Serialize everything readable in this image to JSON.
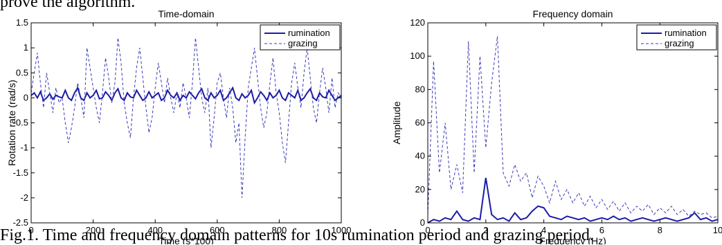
{
  "page": {
    "top_text": "prove the algorithm.",
    "caption": "Fig.1. Time and frequency domain patterns for 10s rumination period and grazing period."
  },
  "colors": {
    "rumination": "#1a1aa6",
    "grazing": "#3a3ab8"
  },
  "chart_data": [
    {
      "type": "line",
      "title": "Time-domain",
      "xlabel": "Time (s*100)",
      "ylabel": "Rotation rate (rad/s)",
      "xlim": [
        0,
        1000
      ],
      "ylim": [
        -2.5,
        1.5
      ],
      "xticks": [
        0,
        200,
        400,
        600,
        800,
        1000
      ],
      "yticks": [
        -2.5,
        -2,
        -1.5,
        -1,
        -0.5,
        0,
        0.5,
        1,
        1.5
      ],
      "xtick_labels": [
        "0",
        "200",
        "400",
        "600",
        "800",
        "1000"
      ],
      "ytick_labels": [
        "-2.5",
        "-2",
        "-1.5",
        "-1",
        "-0.5",
        "0",
        "0.5",
        "1",
        "1.5"
      ],
      "grid": false,
      "legend_position": "top-right",
      "series": [
        {
          "name": "rumination",
          "style": "solid",
          "x": [
            0,
            10,
            20,
            30,
            40,
            50,
            60,
            70,
            80,
            90,
            100,
            110,
            120,
            130,
            140,
            150,
            160,
            170,
            180,
            190,
            200,
            210,
            220,
            230,
            240,
            250,
            260,
            270,
            280,
            290,
            300,
            310,
            320,
            330,
            340,
            350,
            360,
            370,
            380,
            390,
            400,
            410,
            420,
            430,
            440,
            450,
            460,
            470,
            480,
            490,
            500,
            510,
            520,
            530,
            540,
            550,
            560,
            570,
            580,
            590,
            600,
            610,
            620,
            630,
            640,
            650,
            660,
            670,
            680,
            690,
            700,
            710,
            720,
            730,
            740,
            750,
            760,
            770,
            780,
            790,
            800,
            810,
            820,
            830,
            840,
            850,
            860,
            870,
            880,
            890,
            900,
            910,
            920,
            930,
            940,
            950,
            960,
            970,
            980,
            990,
            1000
          ],
          "y": [
            0.05,
            0.1,
            0.0,
            0.12,
            -0.05,
            0.0,
            0.08,
            -0.03,
            0.05,
            0.02,
            0.0,
            0.15,
            0.0,
            -0.05,
            0.1,
            0.2,
            0.0,
            -0.05,
            0.1,
            0.0,
            0.05,
            0.15,
            -0.02,
            0.0,
            0.12,
            0.05,
            -0.05,
            0.1,
            0.18,
            0.0,
            -0.05,
            0.1,
            0.02,
            0.0,
            0.15,
            0.05,
            -0.05,
            0.0,
            0.12,
            0.0,
            0.05,
            0.1,
            -0.05,
            0.0,
            0.15,
            0.05,
            0.0,
            0.1,
            -0.05,
            0.05,
            0.0,
            0.12,
            0.05,
            -0.02,
            0.1,
            0.18,
            0.0,
            -0.05,
            0.1,
            0.0,
            0.05,
            0.15,
            -0.05,
            0.0,
            0.1,
            0.2,
            0.0,
            -0.05,
            0.08,
            0.0,
            0.05,
            0.15,
            -0.1,
            0.0,
            0.12,
            0.05,
            -0.05,
            0.1,
            0.0,
            0.05,
            0.15,
            0.0,
            -0.05,
            0.1,
            0.05,
            0.0,
            0.15,
            -0.05,
            0.0,
            0.1,
            0.18,
            0.0,
            -0.05,
            0.1,
            0.02,
            0.0,
            0.15,
            0.05,
            -0.05,
            0.0,
            0.05
          ]
        },
        {
          "name": "grazing",
          "style": "dashed",
          "x": [
            0,
            10,
            20,
            30,
            40,
            50,
            60,
            70,
            80,
            90,
            100,
            110,
            120,
            130,
            140,
            150,
            160,
            170,
            180,
            190,
            200,
            210,
            220,
            230,
            240,
            250,
            260,
            270,
            280,
            290,
            300,
            310,
            320,
            330,
            340,
            350,
            360,
            370,
            380,
            390,
            400,
            410,
            420,
            430,
            440,
            450,
            460,
            470,
            480,
            490,
            500,
            510,
            520,
            530,
            540,
            550,
            560,
            570,
            580,
            590,
            600,
            610,
            620,
            630,
            640,
            650,
            660,
            670,
            680,
            690,
            700,
            710,
            720,
            730,
            740,
            750,
            760,
            770,
            780,
            790,
            800,
            810,
            820,
            830,
            840,
            850,
            860,
            870,
            880,
            890,
            900,
            910,
            920,
            930,
            940,
            950,
            960,
            970,
            980,
            990,
            1000
          ],
          "y": [
            0.1,
            0.5,
            0.9,
            0.3,
            -0.2,
            0.5,
            0.1,
            -0.3,
            0.2,
            -0.1,
            0.0,
            -0.5,
            -0.9,
            -0.6,
            -0.2,
            0.3,
            0.0,
            -0.4,
            1.0,
            0.6,
            0.2,
            -0.2,
            -0.5,
            0.1,
            0.8,
            0.4,
            -0.1,
            0.3,
            1.2,
            0.7,
            -0.1,
            -0.5,
            -0.8,
            0.0,
            0.6,
            1.0,
            0.4,
            -0.2,
            -0.7,
            -0.4,
            0.2,
            0.7,
            0.3,
            -0.1,
            0.4,
            0.0,
            -0.3,
            0.1,
            -0.2,
            0.3,
            0.0,
            -0.4,
            0.3,
            1.2,
            0.6,
            0.0,
            -0.3,
            0.2,
            -1.0,
            -0.4,
            0.3,
            0.5,
            0.0,
            -0.4,
            0.2,
            -0.2,
            -0.9,
            -0.5,
            -2.0,
            -0.8,
            0.2,
            0.6,
            1.0,
            0.4,
            -0.2,
            -0.6,
            -0.3,
            0.3,
            0.8,
            0.1,
            -0.3,
            -0.9,
            -1.3,
            -0.5,
            0.3,
            0.7,
            0.2,
            -0.2,
            0.5,
            1.0,
            0.4,
            -0.2,
            -0.5,
            0.1,
            0.6,
            0.2,
            -0.3,
            0.4,
            -0.2,
            0.1,
            0.0
          ]
        }
      ]
    },
    {
      "type": "line",
      "title": "Frequency domain",
      "xlabel": "Frequency (Hz)",
      "ylabel": "Amplitude",
      "xlim": [
        0,
        10
      ],
      "ylim": [
        0,
        120
      ],
      "xticks": [
        0,
        2,
        4,
        6,
        8,
        10
      ],
      "yticks": [
        0,
        20,
        40,
        60,
        80,
        100,
        120
      ],
      "xtick_labels": [
        "0",
        "2",
        "4",
        "6",
        "8",
        "10"
      ],
      "ytick_labels": [
        "0",
        "20",
        "40",
        "60",
        "80",
        "100",
        "120"
      ],
      "grid": false,
      "legend_position": "top-right",
      "series": [
        {
          "name": "rumination",
          "style": "solid",
          "x": [
            0,
            0.2,
            0.4,
            0.6,
            0.8,
            1.0,
            1.2,
            1.4,
            1.6,
            1.8,
            2.0,
            2.2,
            2.4,
            2.6,
            2.8,
            3.0,
            3.2,
            3.4,
            3.6,
            3.8,
            4.0,
            4.2,
            4.4,
            4.6,
            4.8,
            5.0,
            5.2,
            5.4,
            5.6,
            5.8,
            6.0,
            6.2,
            6.4,
            6.6,
            6.8,
            7.0,
            7.2,
            7.4,
            7.6,
            7.8,
            8.0,
            8.2,
            8.4,
            8.6,
            8.8,
            9.0,
            9.2,
            9.4,
            9.6,
            9.8,
            10.0
          ],
          "y": [
            0,
            2,
            1,
            3,
            2,
            7,
            2,
            1,
            3,
            2,
            27,
            5,
            2,
            3,
            1,
            6,
            2,
            3,
            7,
            10,
            9,
            4,
            3,
            2,
            4,
            3,
            2,
            3,
            1,
            2,
            3,
            2,
            4,
            2,
            3,
            1,
            2,
            3,
            2,
            1,
            2,
            3,
            2,
            1,
            2,
            3,
            6,
            2,
            3,
            1,
            2
          ]
        },
        {
          "name": "grazing",
          "style": "dashed",
          "x": [
            0,
            0.2,
            0.4,
            0.6,
            0.8,
            1.0,
            1.2,
            1.4,
            1.6,
            1.8,
            2.0,
            2.2,
            2.4,
            2.6,
            2.8,
            3.0,
            3.2,
            3.4,
            3.6,
            3.8,
            4.0,
            4.2,
            4.4,
            4.6,
            4.8,
            5.0,
            5.2,
            5.4,
            5.6,
            5.8,
            6.0,
            6.2,
            6.4,
            6.6,
            6.8,
            7.0,
            7.2,
            7.4,
            7.6,
            7.8,
            8.0,
            8.2,
            8.4,
            8.6,
            8.8,
            9.0,
            9.2,
            9.4,
            9.6,
            9.8,
            10.0
          ],
          "y": [
            5,
            97,
            30,
            60,
            20,
            35,
            18,
            109,
            30,
            100,
            45,
            84,
            112,
            30,
            22,
            35,
            25,
            30,
            15,
            28,
            22,
            12,
            25,
            14,
            20,
            12,
            18,
            10,
            16,
            9,
            14,
            8,
            13,
            7,
            12,
            6,
            10,
            7,
            11,
            5,
            9,
            6,
            10,
            5,
            8,
            4,
            7,
            5,
            6,
            3,
            4
          ]
        }
      ]
    }
  ]
}
